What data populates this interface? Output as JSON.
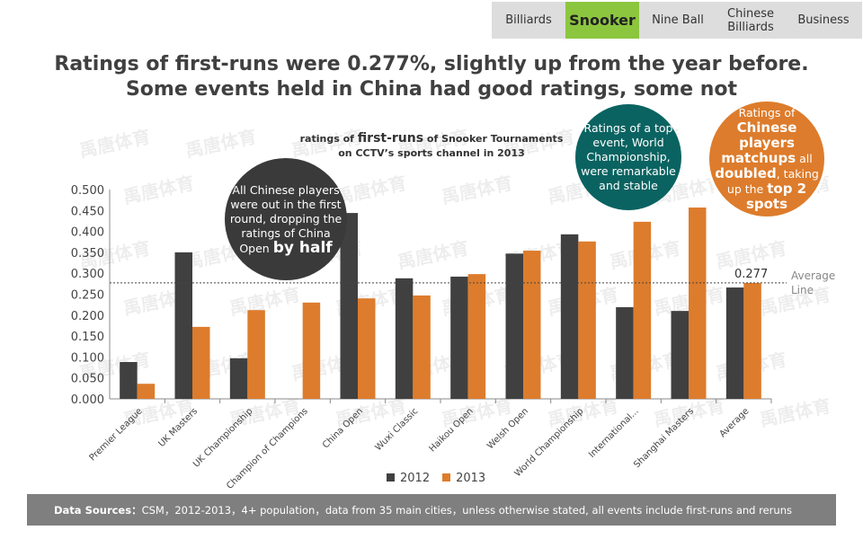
{
  "tabs": [
    "Billiards",
    "Snooker",
    "Nine Ball",
    "Chinese Billiards",
    "Business"
  ],
  "active_tab": 1,
  "title": {
    "line1": "Ratings of first-runs were 0.277%, slightly up from the year before.",
    "line2": "Some events held in China had good ratings, some not"
  },
  "watermark": "禹唐体育",
  "callouts": {
    "china_open": {
      "text": "All Chinese players were out in the first round, dropping the ratings of China Open",
      "bold": "by half"
    },
    "world": {
      "text": "Ratings of a top event, World Championship, were remarkable and stable"
    },
    "chinese": {
      "t1": "Ratings of",
      "b1": "Chinese players matchups",
      "t2": "all",
      "b2": "doubled",
      "t3": ", taking up the",
      "b3": "top 2",
      "b4": "spots"
    }
  },
  "footer": {
    "label": "Data Sources：",
    "text": "CSM，2012-2013，4+ population，data from 35 main cities，unless otherwise stated, all events include first-runs and reruns"
  },
  "colors": {
    "s2012": "#404040",
    "s2013": "#dd7c2c",
    "tab_active": "#8cc63f",
    "teal": "#0a6361",
    "orange": "#dd7c2c"
  },
  "chart_data": {
    "type": "bar",
    "title_pre": "ratings of",
    "title_bold": "first-runs",
    "title_post": "of Snooker Tournaments",
    "subtitle": "on CCTV’s sports channel in 2013",
    "categories": [
      "Premier League",
      "UK Masters",
      "UK Championship",
      "Champion of Champions",
      "China Open",
      "Wuxi Classic",
      "Haikou Open",
      "Welsh Open",
      "World Championship",
      "International...",
      "Shanghai Masters",
      "Average"
    ],
    "series": [
      {
        "name": "2012",
        "values": [
          0.088,
          0.35,
          0.097,
          null,
          0.444,
          0.288,
          0.292,
          0.347,
          0.393,
          0.219,
          0.21,
          0.266
        ]
      },
      {
        "name": "2013",
        "values": [
          0.036,
          0.172,
          0.212,
          0.23,
          0.24,
          0.247,
          0.298,
          0.354,
          0.376,
          0.423,
          0.457,
          0.277
        ]
      }
    ],
    "ylim": [
      0,
      0.5
    ],
    "yticks": [
      "0.000",
      "0.050",
      "0.100",
      "0.150",
      "0.200",
      "0.250",
      "0.300",
      "0.350",
      "0.400",
      "0.450",
      "0.500"
    ],
    "average_line": {
      "value": 0.277,
      "label": "0.277",
      "name": "Average Line"
    },
    "legend": "bottom"
  }
}
